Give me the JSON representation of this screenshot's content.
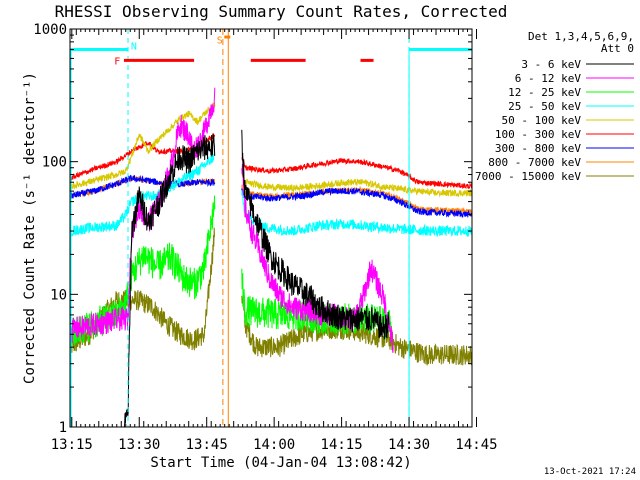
{
  "chart_data": {
    "type": "line",
    "title": "RHESSI Observing Summary Count Rates, Corrected",
    "xlabel": "Start Time (04-Jan-04 13:08:42)",
    "ylabel": "Corrected Count Rate (s⁻¹ detector⁻¹)",
    "ylog": true,
    "xlim": [
      8.6,
      98.0
    ],
    "ylim": [
      1,
      1000
    ],
    "x_unit": "minutes after 13:06:00",
    "xticks": [
      {
        "x": 9,
        "label": "13:15"
      },
      {
        "x": 24,
        "label": "13:30"
      },
      {
        "x": 39,
        "label": "13:45"
      },
      {
        "x": 54,
        "label": "14:00"
      },
      {
        "x": 69,
        "label": "14:15"
      },
      {
        "x": 84,
        "label": "14:30"
      },
      {
        "x": 99,
        "label": "14:45"
      }
    ],
    "yticks": [
      {
        "y": 1,
        "label": "1"
      },
      {
        "y": 10,
        "label": "10"
      },
      {
        "y": 100,
        "label": "100"
      },
      {
        "y": 1000,
        "label": "1000"
      }
    ],
    "legend_header": [
      "Det 1,3,4,5,6,9,",
      "Att 0"
    ],
    "legend_position": "top-right outside",
    "series": [
      {
        "name": "3 - 6 keV",
        "color": "#000000",
        "knots": [
          [
            20.7,
            1
          ],
          [
            21.5,
            1.3
          ],
          [
            22.3,
            30
          ],
          [
            24,
            55
          ],
          [
            26,
            35
          ],
          [
            28.5,
            50
          ],
          [
            31,
            80
          ],
          [
            33,
            110
          ],
          [
            35,
            100
          ],
          [
            37,
            120
          ],
          [
            39.5,
            130
          ],
          [
            40.8,
            130
          ]
        ],
        "knots2": [
          [
            46.8,
            150
          ],
          [
            47.5,
            60
          ],
          [
            49,
            45
          ],
          [
            51,
            30
          ],
          [
            53,
            20
          ],
          [
            55,
            16
          ],
          [
            58,
            12
          ],
          [
            62,
            9.5
          ],
          [
            64,
            8
          ],
          [
            67,
            7
          ],
          [
            70,
            6.5
          ],
          [
            73,
            6.5
          ],
          [
            76,
            6.5
          ],
          [
            78,
            5.5
          ],
          [
            79.5,
            6
          ]
        ],
        "noise": 0.1
      },
      {
        "name": "6 - 12 keV",
        "color": "#ff00ff",
        "knots": [
          [
            8.6,
            5
          ],
          [
            9.5,
            5.5
          ],
          [
            20,
            6.5
          ],
          [
            21.5,
            6.5
          ],
          [
            22.3,
            30
          ],
          [
            24,
            45
          ],
          [
            26,
            35
          ],
          [
            28.5,
            50
          ],
          [
            31,
            90
          ],
          [
            33,
            190
          ],
          [
            35,
            160
          ],
          [
            36,
            120
          ],
          [
            38,
            150
          ],
          [
            40,
            250
          ],
          [
            40.8,
            300
          ]
        ],
        "knots2": [
          [
            46.8,
            90
          ],
          [
            47.5,
            45
          ],
          [
            49,
            30
          ],
          [
            51,
            20
          ],
          [
            53,
            13
          ],
          [
            55,
            10
          ],
          [
            58,
            8
          ],
          [
            62,
            7.5
          ],
          [
            65,
            7
          ],
          [
            68,
            7
          ],
          [
            70,
            6.5
          ],
          [
            72,
            6.5
          ],
          [
            74,
            10
          ],
          [
            75.5,
            16
          ],
          [
            77,
            12
          ],
          [
            78.5,
            9
          ],
          [
            79.5,
            6
          ],
          [
            80.5,
            4
          ]
        ],
        "noise": 0.09
      },
      {
        "name": "12 - 25 keV",
        "color": "#00ff00",
        "knots": [
          [
            8.6,
            5
          ],
          [
            14,
            6
          ],
          [
            19,
            7
          ],
          [
            21,
            8.5
          ],
          [
            22.3,
            14
          ],
          [
            25,
            20
          ],
          [
            28,
            16
          ],
          [
            31,
            19
          ],
          [
            34,
            13
          ],
          [
            36.5,
            12
          ],
          [
            38.5,
            16
          ],
          [
            40.8,
            50
          ]
        ],
        "knots2": [
          [
            46.8,
            13
          ],
          [
            47.5,
            7.5
          ],
          [
            55,
            7
          ],
          [
            60,
            7
          ],
          [
            65,
            6.5
          ],
          [
            70,
            6.5
          ],
          [
            75,
            6.5
          ],
          [
            80,
            6
          ]
        ],
        "noise": 0.12
      },
      {
        "name": "25 - 50 keV",
        "color": "#00ffff",
        "knots": [
          [
            8.6,
            30
          ],
          [
            14,
            32
          ],
          [
            19,
            33
          ],
          [
            21,
            40
          ],
          [
            22.3,
            50
          ],
          [
            25,
            55
          ],
          [
            28,
            55
          ],
          [
            31,
            65
          ],
          [
            34,
            75
          ],
          [
            37,
            85
          ],
          [
            40.8,
            110
          ]
        ],
        "knots2": [
          [
            46.8,
            60
          ],
          [
            47.5,
            40
          ],
          [
            52,
            32
          ],
          [
            58,
            30
          ],
          [
            64,
            33
          ],
          [
            70,
            34
          ],
          [
            74,
            33
          ],
          [
            78,
            32
          ],
          [
            82,
            31
          ],
          [
            90,
            30
          ],
          [
            98,
            30
          ]
        ],
        "noise": 0.04
      },
      {
        "name": "50 - 100 keV",
        "color": "#d8c800",
        "knots": [
          [
            8.6,
            65
          ],
          [
            14,
            72
          ],
          [
            19,
            80
          ],
          [
            21,
            85
          ],
          [
            22.3,
            110
          ],
          [
            24,
            160
          ],
          [
            26,
            120
          ],
          [
            28.5,
            150
          ],
          [
            31,
            180
          ],
          [
            33,
            210
          ],
          [
            35,
            230
          ],
          [
            37,
            200
          ],
          [
            38.5,
            230
          ],
          [
            40.8,
            270
          ]
        ],
        "knots2": [
          [
            46.8,
            85
          ],
          [
            47.5,
            70
          ],
          [
            52,
            65
          ],
          [
            58,
            63
          ],
          [
            64,
            66
          ],
          [
            70,
            70
          ],
          [
            74,
            70
          ],
          [
            78,
            65
          ],
          [
            82,
            62
          ],
          [
            90,
            58
          ],
          [
            98,
            58
          ]
        ],
        "noise": 0.025
      },
      {
        "name": "100 - 300 keV",
        "color": "#ff0000",
        "knots": [
          [
            8.6,
            75
          ],
          [
            14,
            88
          ],
          [
            19,
            100
          ],
          [
            22.3,
            120
          ],
          [
            26,
            140
          ],
          [
            28,
            120
          ],
          [
            34,
            120
          ],
          [
            37,
            130
          ],
          [
            40.8,
            160
          ]
        ],
        "knots2": [
          [
            46.8,
            110
          ],
          [
            47.5,
            90
          ],
          [
            53,
            85
          ],
          [
            58,
            88
          ],
          [
            63,
            95
          ],
          [
            69,
            102
          ],
          [
            73,
            100
          ],
          [
            78,
            92
          ],
          [
            82,
            85
          ],
          [
            86,
            70
          ],
          [
            98,
            65
          ]
        ],
        "noise": 0.02
      },
      {
        "name": "300 - 800 keV",
        "color": "#0000ff",
        "knots": [
          [
            8.6,
            55
          ],
          [
            14,
            60
          ],
          [
            19,
            68
          ],
          [
            22.3,
            75
          ],
          [
            26,
            72
          ],
          [
            30,
            68
          ],
          [
            34,
            68
          ],
          [
            37,
            70
          ],
          [
            40.8,
            70
          ]
        ],
        "knots2": [
          [
            46.8,
            62
          ],
          [
            47.5,
            55
          ],
          [
            53,
            53
          ],
          [
            60,
            55
          ],
          [
            66,
            60
          ],
          [
            72,
            60
          ],
          [
            78,
            56
          ],
          [
            82,
            50
          ],
          [
            86,
            42
          ],
          [
            98,
            40
          ]
        ],
        "noise": 0.025
      },
      {
        "name": "800 - 7000 keV",
        "color": "#ff8000",
        "knots": [
          [
            8.6,
            55
          ],
          [
            14,
            60
          ],
          [
            19,
            68
          ],
          [
            22.3,
            75
          ],
          [
            26,
            72
          ],
          [
            30,
            68
          ],
          [
            34,
            68
          ],
          [
            37,
            70
          ],
          [
            40.8,
            72
          ]
        ],
        "knots2": [
          [
            46.8,
            65
          ],
          [
            47.5,
            58
          ],
          [
            53,
            55
          ],
          [
            60,
            57
          ],
          [
            66,
            60
          ],
          [
            72,
            62
          ],
          [
            78,
            58
          ],
          [
            82,
            52
          ],
          [
            86,
            44
          ],
          [
            98,
            42
          ]
        ],
        "noise": 0.02
      },
      {
        "name": "7000 - 15000 keV",
        "color": "#808000",
        "knots": [
          [
            8.6,
            4
          ],
          [
            13,
            5
          ],
          [
            16,
            7
          ],
          [
            19,
            9
          ],
          [
            21,
            9
          ],
          [
            24,
            9
          ],
          [
            27,
            8
          ],
          [
            30,
            6
          ],
          [
            33,
            5
          ],
          [
            36,
            4.5
          ],
          [
            38.5,
            5
          ],
          [
            40.8,
            30
          ]
        ],
        "knots2": [
          [
            46.8,
            10
          ],
          [
            47.5,
            6
          ],
          [
            50,
            4
          ],
          [
            55,
            4
          ],
          [
            60,
            5
          ],
          [
            65,
            5.5
          ],
          [
            70,
            5.5
          ],
          [
            75,
            5
          ],
          [
            80,
            4.5
          ],
          [
            82,
            4
          ],
          [
            88,
            3.5
          ],
          [
            98,
            3.5
          ]
        ],
        "noise": 0.08
      }
    ],
    "annotations": [
      {
        "text": "F",
        "x": 19.1,
        "y": 580,
        "color": "#ff0000"
      },
      {
        "text": "N",
        "x": 22.8,
        "y": 750,
        "color": "#00ffff"
      },
      {
        "text": "S",
        "x": 41.9,
        "y": 830,
        "color": "#ff8000"
      }
    ],
    "flare_bars": [
      [
        20.6,
        36.2
      ],
      [
        48.8,
        61.0
      ],
      [
        73.2,
        76.1
      ]
    ],
    "flare_bar_y": 580,
    "flare_bar_color": "#ff0000",
    "night_regions": [
      [
        8.6,
        21.5
      ],
      [
        84.0,
        98.0
      ]
    ],
    "night_level": 700,
    "night_color": "#00ffff",
    "saa_lines": [
      42.6,
      43.8
    ],
    "saa_color": "#ff8000",
    "gap": [
      40.8,
      46.8
    ],
    "timestamp": "13-Oct-2021 17:24"
  }
}
